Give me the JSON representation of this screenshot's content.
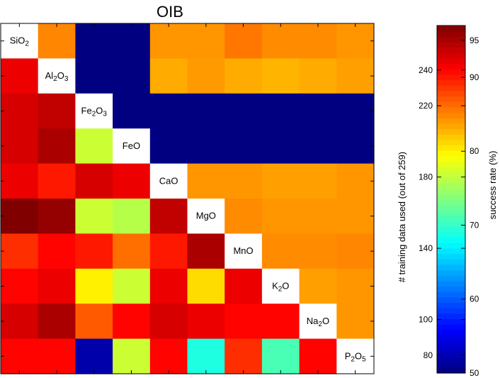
{
  "chart_data": {
    "type": "heatmap",
    "title": "OIB",
    "labels": [
      [
        "SiO",
        "2",
        ""
      ],
      [
        "Al",
        "2",
        "O",
        "3"
      ],
      [
        "Fe",
        "2",
        "O",
        "3"
      ],
      [
        "FeO"
      ],
      [
        "CaO"
      ],
      [
        "MgO"
      ],
      [
        "MnO"
      ],
      [
        "K",
        "2",
        "O"
      ],
      [
        "Na",
        "2",
        "O"
      ],
      [
        "P",
        "2",
        "O",
        "5"
      ]
    ],
    "upper_triangle_description": "number of training data used (out of 259)",
    "lower_triangle_description": "success rate (%)",
    "training_data_used": [
      [
        null,
        215,
        55,
        55,
        212,
        212,
        218,
        214,
        214,
        212
      ],
      [
        null,
        null,
        55,
        55,
        208,
        211,
        208,
        206,
        208,
        210
      ],
      [
        null,
        null,
        null,
        50,
        50,
        50,
        50,
        50,
        50,
        50
      ],
      [
        null,
        null,
        null,
        null,
        50,
        50,
        50,
        50,
        50,
        50
      ],
      [
        null,
        null,
        null,
        null,
        null,
        212,
        212,
        210,
        210,
        212
      ],
      [
        null,
        null,
        null,
        null,
        null,
        null,
        214,
        212,
        212,
        212
      ],
      [
        null,
        null,
        null,
        null,
        null,
        null,
        null,
        214,
        214,
        215
      ],
      [
        null,
        null,
        null,
        null,
        null,
        null,
        null,
        null,
        210,
        212
      ],
      [
        null,
        null,
        null,
        null,
        null,
        null,
        null,
        null,
        null,
        212
      ],
      [
        null,
        null,
        null,
        null,
        null,
        null,
        null,
        null,
        null,
        null
      ]
    ],
    "success_rate": [
      [
        null,
        null,
        null,
        null,
        null,
        null,
        null,
        null,
        null,
        null
      ],
      [
        92,
        null,
        null,
        null,
        null,
        null,
        null,
        null,
        null,
        null
      ],
      [
        93,
        94,
        null,
        null,
        null,
        null,
        null,
        null,
        null,
        null
      ],
      [
        93,
        95,
        77,
        null,
        null,
        null,
        null,
        null,
        null,
        null
      ],
      [
        92,
        90,
        93,
        92,
        null,
        null,
        null,
        null,
        null,
        null
      ],
      [
        97,
        96,
        77,
        76,
        94,
        null,
        null,
        null,
        null,
        null
      ],
      [
        89,
        91,
        90,
        86,
        90,
        95,
        null,
        null,
        null,
        null
      ],
      [
        91,
        92,
        80,
        77,
        92,
        81,
        92,
        null,
        null,
        null
      ],
      [
        93,
        95,
        87,
        91,
        93,
        92,
        91,
        91,
        null,
        null
      ],
      [
        91,
        91,
        52,
        77,
        91,
        69,
        89,
        71,
        91,
        null
      ]
    ],
    "colorbar": {
      "left_axis_label": "# training data used (out of 259)",
      "left_range": [
        70,
        265
      ],
      "left_ticks": [
        "80",
        "100",
        "140",
        "180",
        "220",
        "240"
      ],
      "right_axis_label": "success rate (%)",
      "right_range": [
        50,
        97
      ],
      "right_ticks": [
        "50",
        "60",
        "70",
        "80",
        "90",
        "95"
      ],
      "colormap": "jet"
    },
    "colors": {
      "white": "#ffffff",
      "border": "#000000"
    }
  }
}
